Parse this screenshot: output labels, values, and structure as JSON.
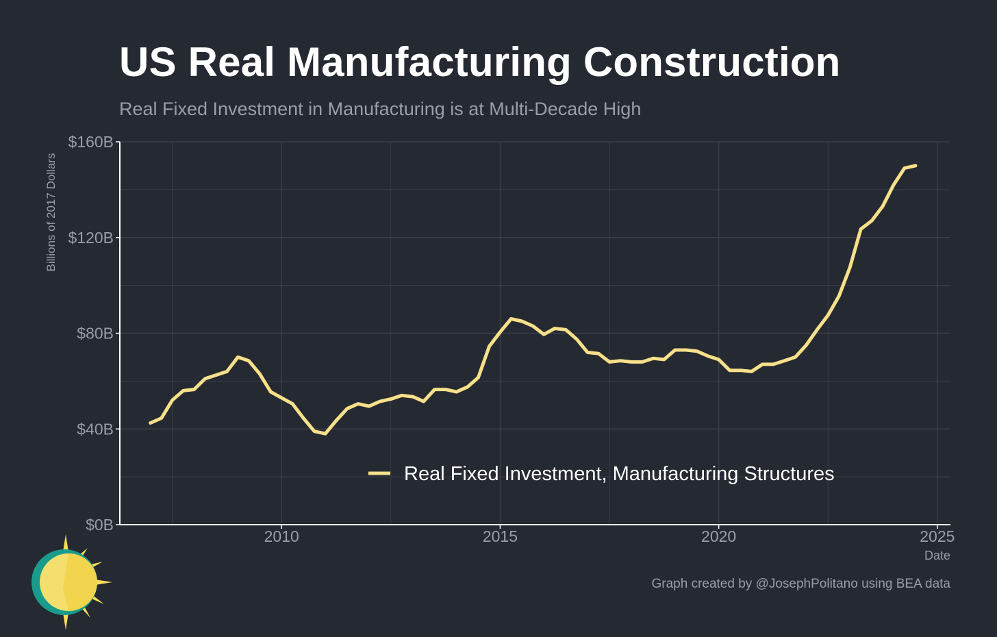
{
  "title": "US Real Manufacturing Construction",
  "subtitle": "Real Fixed Investment in Manufacturing is at Multi-Decade High",
  "credit": "Graph created by @JosephPolitano using BEA data",
  "colors": {
    "background": "#252931",
    "line": "#f7e08a",
    "grid": "#3b3f47",
    "axis": "#ffffff",
    "text_muted": "#9a9ea6"
  },
  "logo_icon": "sun-logo-icon",
  "chart_data": {
    "type": "line",
    "title": "US Real Manufacturing Construction",
    "subtitle": "Real Fixed Investment in Manufacturing is at Multi-Decade High",
    "xlabel": "Date",
    "ylabel": "Billions of 2017 Dollars",
    "xlim": [
      2006.3,
      2025.3
    ],
    "ylim": [
      0,
      160
    ],
    "x_ticks": [
      2010,
      2015,
      2020,
      2025
    ],
    "x_tick_labels": [
      "2010",
      "2015",
      "2020",
      "2025"
    ],
    "y_ticks": [
      0,
      40,
      80,
      120,
      160
    ],
    "y_tick_labels": [
      "$0B",
      "$40B",
      "$80B",
      "$120B",
      "$160B"
    ],
    "grid": true,
    "legend": {
      "placement": "bottom-center",
      "entries": [
        "Real Fixed Investment, Manufacturing Structures"
      ]
    },
    "series": [
      {
        "name": "Real Fixed Investment, Manufacturing Structures",
        "x": [
          2007.0,
          2007.25,
          2007.5,
          2007.75,
          2008.0,
          2008.25,
          2008.5,
          2008.75,
          2009.0,
          2009.25,
          2009.5,
          2009.75,
          2010.0,
          2010.25,
          2010.5,
          2010.75,
          2011.0,
          2011.25,
          2011.5,
          2011.75,
          2012.0,
          2012.25,
          2012.5,
          2012.75,
          2013.0,
          2013.25,
          2013.5,
          2013.75,
          2014.0,
          2014.25,
          2014.5,
          2014.75,
          2015.0,
          2015.25,
          2015.5,
          2015.75,
          2016.0,
          2016.25,
          2016.5,
          2016.75,
          2017.0,
          2017.25,
          2017.5,
          2017.75,
          2018.0,
          2018.25,
          2018.5,
          2018.75,
          2019.0,
          2019.25,
          2019.5,
          2019.75,
          2020.0,
          2020.25,
          2020.5,
          2020.75,
          2021.0,
          2021.25,
          2021.5,
          2021.75,
          2022.0,
          2022.25,
          2022.5,
          2022.75,
          2023.0,
          2023.25,
          2023.5,
          2023.75,
          2024.0,
          2024.25,
          2024.5
        ],
        "values": [
          42.5,
          44.5,
          52.0,
          56.0,
          56.5,
          61.0,
          62.5,
          64.0,
          70.0,
          68.5,
          63.0,
          55.5,
          53.0,
          50.5,
          44.5,
          39.0,
          38.0,
          43.5,
          48.5,
          50.5,
          49.5,
          51.5,
          52.5,
          54.0,
          53.5,
          51.5,
          56.5,
          56.5,
          55.5,
          57.5,
          61.5,
          74.5,
          80.5,
          86.0,
          85.0,
          83.0,
          79.5,
          82.0,
          81.5,
          77.5,
          72.0,
          71.5,
          68.0,
          68.5,
          68.0,
          68.0,
          69.5,
          69.0,
          73.0,
          73.0,
          72.5,
          70.5,
          69.0,
          64.5,
          64.5,
          64.0,
          67.0,
          67.0,
          68.5,
          70.0,
          75.0,
          81.5,
          87.5,
          95.5,
          107.5,
          123.5,
          127.0,
          133.0,
          142.0,
          149.0,
          150.0
        ]
      }
    ]
  }
}
